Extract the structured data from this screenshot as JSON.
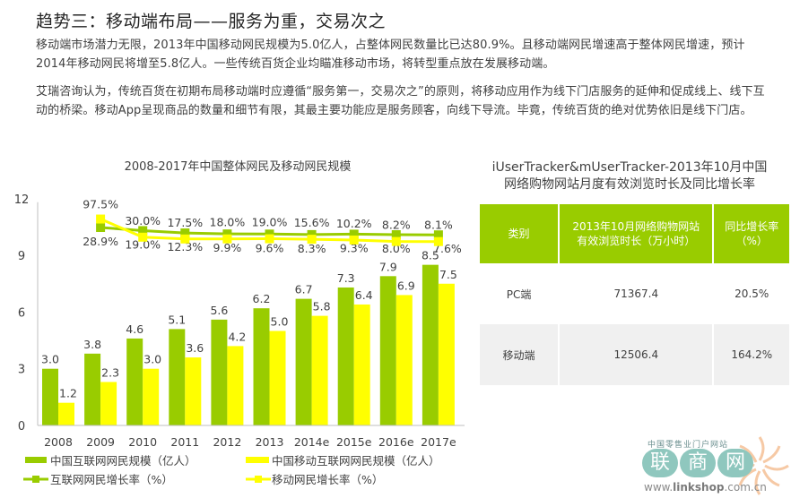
{
  "header": {
    "title": "趋势三：移动端布局——服务为重，交易次之",
    "paragraphs": [
      "移动端市场潜力无限，2013年中国移动网民规模为5.0亿人，占整体网民数量比已达80.9%。且移动端网民增速高于整体网民增速，预计2014年移动网民将增至5.8亿人。一些传统百货企业均瞄准移动市场，将转型重点放在发展移动端。",
      "艾瑞咨询认为，传统百货在初期布局移动端时应遵循“服务第一，交易次之”的原则，将移动应用作为线下门店服务的延伸和促成线上、线下互动的桥梁。移动App呈现商品的数量和细节有限，其最主要功能应是服务顾客，向线下导流。毕竟，传统百货的绝对优势依旧是线下门店。"
    ]
  },
  "colors": {
    "green": "#99cc00",
    "yellow": "#ffff00",
    "text": "#404040",
    "axis": "#bfbfbf",
    "table_row_alt": "#f0f0f0"
  },
  "chart_data": {
    "type": "bar",
    "title": "2008-2017年中国整体网民及移动网民规模",
    "xlabel": "",
    "ylabel": "",
    "ylim": [
      0,
      12
    ],
    "yticks": [
      0,
      3,
      6,
      9,
      12
    ],
    "categories": [
      "2008",
      "2009",
      "2010",
      "2011",
      "2012",
      "2013",
      "2014e",
      "2015e",
      "2016e",
      "2017e"
    ],
    "series": [
      {
        "name": "中国互联网网民规模（亿人）",
        "kind": "bar",
        "color": "#99cc00",
        "values": [
          3.0,
          3.8,
          4.6,
          5.1,
          5.6,
          6.2,
          6.7,
          7.3,
          7.9,
          8.5
        ],
        "labels": [
          "3.0",
          "3.8",
          "4.6",
          "5.1",
          "5.6",
          "6.2",
          "6.7",
          "7.3",
          "7.9",
          "8.5"
        ]
      },
      {
        "name": "中国移动互联网网民规模（亿人）",
        "kind": "bar",
        "color": "#ffff00",
        "values": [
          1.2,
          2.3,
          3.0,
          3.6,
          4.2,
          5.0,
          5.8,
          6.4,
          6.9,
          7.5
        ],
        "labels": [
          "1.2",
          "2.3",
          "3.0",
          "3.6",
          "4.2",
          "5.0",
          "5.8",
          "6.4",
          "6.9",
          "7.5"
        ]
      },
      {
        "name": "互联网网民增长率（%）",
        "kind": "line",
        "color": "#99cc00",
        "values": [
          28.9,
          19.0,
          12.3,
          9.9,
          9.6,
          8.3,
          9.3,
          8.0,
          7.6
        ],
        "x": [
          "2009",
          "2010",
          "2011",
          "2012",
          "2013",
          "2014e",
          "2015e",
          "2016e",
          "2017e"
        ],
        "labels": [
          "28.9%",
          "19.0%",
          "12.3%",
          "9.9%",
          "9.6%",
          "8.3%",
          "9.3%",
          "8.0%",
          "7.6%"
        ]
      },
      {
        "name": "移动网民增长率（%）",
        "kind": "line",
        "color": "#ffff00",
        "values": [
          97.5,
          30.0,
          17.5,
          18.0,
          19.0,
          15.6,
          10.2,
          8.2,
          8.1
        ],
        "x": [
          "2009",
          "2010",
          "2011",
          "2012",
          "2013",
          "2014e",
          "2015e",
          "2016e",
          "2017e"
        ],
        "labels": [
          "97.5%",
          "30.0%",
          "17.5%",
          "18.0%",
          "19.0%",
          "15.6%",
          "10.2%",
          "8.2%",
          "8.1%"
        ]
      }
    ],
    "legend": [
      "中国互联网网民规模（亿人）",
      "中国移动互联网网民规模（亿人）",
      "互联网网民增长率（%）",
      "移动网民增长率（%）"
    ],
    "legend_position": "bottom",
    "grid": false
  },
  "table": {
    "title_line1": "iUserTracker&mUserTracker-2013年10月中国",
    "title_line2": "网络购物网站月度有效浏览时长及同比增长率",
    "headers": [
      "类别",
      "2013年10月网络购物网站\n有效浏览时长（万小时）",
      "同比增长率\n（%）"
    ],
    "header_lines": [
      [
        "类别"
      ],
      [
        "2013年10月网络购物网站",
        "有效浏览时长（万小时）"
      ],
      [
        "同比增长率",
        "（%）"
      ]
    ],
    "rows": [
      [
        "PC端",
        "71367.4",
        "20.5%"
      ],
      [
        "移动端",
        "12506.4",
        "164.2%"
      ]
    ]
  },
  "watermark": {
    "tagline": "中国零售业门户网站",
    "brand_chars": [
      "联",
      "商",
      "网"
    ],
    "url_prefix": "www.",
    "url_bold": "linkshop",
    "url_suffix": ".com.cn"
  }
}
